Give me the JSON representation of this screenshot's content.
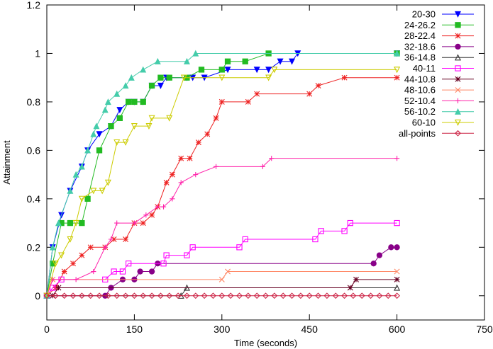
{
  "chart_data": {
    "type": "line",
    "title": "",
    "xlabel": "Time (seconds)",
    "ylabel": "Attainment",
    "xlim": [
      0,
      750
    ],
    "ylim": [
      0,
      1.2
    ],
    "x_ticks": [
      0,
      150,
      300,
      450,
      600,
      750
    ],
    "y_ticks": [
      0,
      0.2,
      0.4,
      0.6,
      0.8,
      1,
      1.2
    ],
    "x_tick_labels": [
      "0",
      "150",
      "300",
      "450",
      "600",
      "750"
    ],
    "y_tick_labels": [
      "0",
      "0.2",
      "0.4",
      "0.6",
      "0.8",
      "1",
      "1.2"
    ],
    "grid": false,
    "legend_position": "top-right",
    "series": [
      {
        "name": "20-30",
        "color": "#0000ff",
        "marker": "triangle-down-filled",
        "points": [
          [
            0,
            0
          ],
          [
            10,
            0.2
          ],
          [
            25,
            0.333
          ],
          [
            40,
            0.433
          ],
          [
            60,
            0.533
          ],
          [
            70,
            0.6
          ],
          [
            90,
            0.667
          ],
          [
            110,
            0.7
          ],
          [
            125,
            0.767
          ],
          [
            140,
            0.8
          ],
          [
            150,
            0.8
          ],
          [
            165,
            0.8
          ],
          [
            180,
            0.867
          ],
          [
            195,
            0.867
          ],
          [
            205,
            0.9
          ],
          [
            240,
            0.9
          ],
          [
            250,
            0.9
          ],
          [
            270,
            0.9
          ],
          [
            310,
            0.933
          ],
          [
            360,
            0.933
          ],
          [
            380,
            0.933
          ],
          [
            400,
            0.967
          ],
          [
            420,
            0.967
          ],
          [
            430,
            1
          ],
          [
            600,
            1
          ]
        ]
      },
      {
        "name": "24-26.2",
        "color": "#22bb22",
        "marker": "square-filled",
        "points": [
          [
            0,
            0
          ],
          [
            10,
            0.133
          ],
          [
            25,
            0.3
          ],
          [
            40,
            0.3
          ],
          [
            60,
            0.3
          ],
          [
            70,
            0.4
          ],
          [
            90,
            0.6
          ],
          [
            110,
            0.7
          ],
          [
            125,
            0.733
          ],
          [
            140,
            0.8
          ],
          [
            150,
            0.8
          ],
          [
            165,
            0.8
          ],
          [
            180,
            0.867
          ],
          [
            195,
            0.9
          ],
          [
            210,
            0.9
          ],
          [
            240,
            0.9
          ],
          [
            265,
            0.933
          ],
          [
            300,
            0.933
          ],
          [
            310,
            0.967
          ],
          [
            340,
            0.967
          ],
          [
            380,
            1
          ],
          [
            600,
            1
          ]
        ]
      },
      {
        "name": "28-22.4",
        "color": "#ee2222",
        "marker": "star",
        "points": [
          [
            0,
            0
          ],
          [
            15,
            0.033
          ],
          [
            30,
            0.1
          ],
          [
            45,
            0.133
          ],
          [
            60,
            0.167
          ],
          [
            75,
            0.2
          ],
          [
            100,
            0.2
          ],
          [
            115,
            0.233
          ],
          [
            135,
            0.233
          ],
          [
            150,
            0.3
          ],
          [
            165,
            0.3
          ],
          [
            180,
            0.333
          ],
          [
            190,
            0.367
          ],
          [
            205,
            0.467
          ],
          [
            215,
            0.5
          ],
          [
            230,
            0.567
          ],
          [
            245,
            0.567
          ],
          [
            260,
            0.633
          ],
          [
            275,
            0.667
          ],
          [
            290,
            0.733
          ],
          [
            300,
            0.8
          ],
          [
            345,
            0.8
          ],
          [
            360,
            0.833
          ],
          [
            450,
            0.833
          ],
          [
            465,
            0.867
          ],
          [
            510,
            0.9
          ],
          [
            600,
            0.9
          ]
        ]
      },
      {
        "name": "32-18.6",
        "color": "#880088",
        "marker": "circle-filled",
        "points": [
          [
            0,
            0
          ],
          [
            100,
            0
          ],
          [
            110,
            0.033
          ],
          [
            130,
            0.067
          ],
          [
            150,
            0.067
          ],
          [
            160,
            0.1
          ],
          [
            180,
            0.1
          ],
          [
            190,
            0.133
          ],
          [
            560,
            0.133
          ],
          [
            570,
            0.167
          ],
          [
            590,
            0.2
          ],
          [
            600,
            0.2
          ]
        ]
      },
      {
        "name": "36-14.8",
        "color": "#333333",
        "marker": "triangle-up-open",
        "points": [
          [
            0,
            0
          ],
          [
            230,
            0
          ],
          [
            240,
            0.033
          ],
          [
            600,
            0.033
          ]
        ]
      },
      {
        "name": "40-11",
        "color": "#ff00ff",
        "marker": "square-open",
        "points": [
          [
            0,
            0
          ],
          [
            10,
            0.033
          ],
          [
            25,
            0.067
          ],
          [
            100,
            0.067
          ],
          [
            115,
            0.1
          ],
          [
            130,
            0.1
          ],
          [
            140,
            0.133
          ],
          [
            200,
            0.133
          ],
          [
            205,
            0.167
          ],
          [
            240,
            0.167
          ],
          [
            250,
            0.2
          ],
          [
            330,
            0.2
          ],
          [
            340,
            0.233
          ],
          [
            460,
            0.233
          ],
          [
            470,
            0.267
          ],
          [
            510,
            0.267
          ],
          [
            520,
            0.3
          ],
          [
            600,
            0.3
          ]
        ]
      },
      {
        "name": "44-10.8",
        "color": "#660022",
        "marker": "star",
        "points": [
          [
            0,
            0
          ],
          [
            10,
            0
          ],
          [
            20,
            0.033
          ],
          [
            520,
            0.033
          ],
          [
            530,
            0.067
          ],
          [
            600,
            0.067
          ]
        ]
      },
      {
        "name": "48-10.6",
        "color": "#ff8866",
        "marker": "cross",
        "points": [
          [
            0,
            0
          ],
          [
            10,
            0.067
          ],
          [
            300,
            0.067
          ],
          [
            310,
            0.1
          ],
          [
            600,
            0.1
          ]
        ]
      },
      {
        "name": "52-10.4",
        "color": "#ff22aa",
        "marker": "plus",
        "points": [
          [
            0,
            0
          ],
          [
            10,
            0.067
          ],
          [
            50,
            0.067
          ],
          [
            80,
            0.1
          ],
          [
            100,
            0.2
          ],
          [
            110,
            0.233
          ],
          [
            120,
            0.3
          ],
          [
            150,
            0.3
          ],
          [
            170,
            0.333
          ],
          [
            190,
            0.367
          ],
          [
            200,
            0.367
          ],
          [
            215,
            0.4
          ],
          [
            230,
            0.467
          ],
          [
            255,
            0.5
          ],
          [
            290,
            0.533
          ],
          [
            370,
            0.533
          ],
          [
            385,
            0.567
          ],
          [
            600,
            0.567
          ]
        ]
      },
      {
        "name": "56-10.2",
        "color": "#44ccaa",
        "marker": "triangle-up-filled",
        "points": [
          [
            0,
            0
          ],
          [
            10,
            0.2
          ],
          [
            20,
            0.3
          ],
          [
            40,
            0.433
          ],
          [
            50,
            0.5
          ],
          [
            60,
            0.533
          ],
          [
            70,
            0.6
          ],
          [
            80,
            0.667
          ],
          [
            85,
            0.7
          ],
          [
            100,
            0.767
          ],
          [
            105,
            0.8
          ],
          [
            120,
            0.833
          ],
          [
            135,
            0.867
          ],
          [
            145,
            0.9
          ],
          [
            165,
            0.933
          ],
          [
            190,
            0.967
          ],
          [
            240,
            0.967
          ],
          [
            255,
            1
          ],
          [
            600,
            1
          ]
        ]
      },
      {
        "name": "60-10",
        "color": "#cccc00",
        "marker": "triangle-down-open",
        "points": [
          [
            0,
            0
          ],
          [
            15,
            0.133
          ],
          [
            25,
            0.167
          ],
          [
            40,
            0.233
          ],
          [
            50,
            0.3
          ],
          [
            60,
            0.4
          ],
          [
            80,
            0.433
          ],
          [
            95,
            0.433
          ],
          [
            105,
            0.467
          ],
          [
            120,
            0.633
          ],
          [
            135,
            0.633
          ],
          [
            150,
            0.7
          ],
          [
            175,
            0.7
          ],
          [
            180,
            0.733
          ],
          [
            210,
            0.733
          ],
          [
            235,
            0.9
          ],
          [
            300,
            0.9
          ],
          [
            380,
            0.9
          ],
          [
            390,
            0.933
          ],
          [
            600,
            0.933
          ]
        ]
      },
      {
        "name": "all-points",
        "color": "#cc2244",
        "marker": "diamond-open",
        "points": [
          [
            0,
            0
          ],
          [
            15,
            0
          ],
          [
            30,
            0
          ],
          [
            45,
            0
          ],
          [
            60,
            0
          ],
          [
            75,
            0
          ],
          [
            90,
            0
          ],
          [
            105,
            0
          ],
          [
            120,
            0
          ],
          [
            135,
            0
          ],
          [
            150,
            0
          ],
          [
            165,
            0
          ],
          [
            180,
            0
          ],
          [
            195,
            0
          ],
          [
            210,
            0
          ],
          [
            225,
            0
          ],
          [
            240,
            0
          ],
          [
            255,
            0
          ],
          [
            270,
            0
          ],
          [
            285,
            0
          ],
          [
            300,
            0
          ],
          [
            315,
            0
          ],
          [
            330,
            0
          ],
          [
            345,
            0
          ],
          [
            360,
            0
          ],
          [
            375,
            0
          ],
          [
            390,
            0
          ],
          [
            405,
            0
          ],
          [
            420,
            0
          ],
          [
            435,
            0
          ],
          [
            450,
            0
          ],
          [
            465,
            0
          ],
          [
            480,
            0
          ],
          [
            495,
            0
          ],
          [
            510,
            0
          ],
          [
            525,
            0
          ],
          [
            540,
            0
          ],
          [
            555,
            0
          ],
          [
            570,
            0
          ],
          [
            585,
            0
          ],
          [
            600,
            0
          ]
        ]
      }
    ]
  }
}
